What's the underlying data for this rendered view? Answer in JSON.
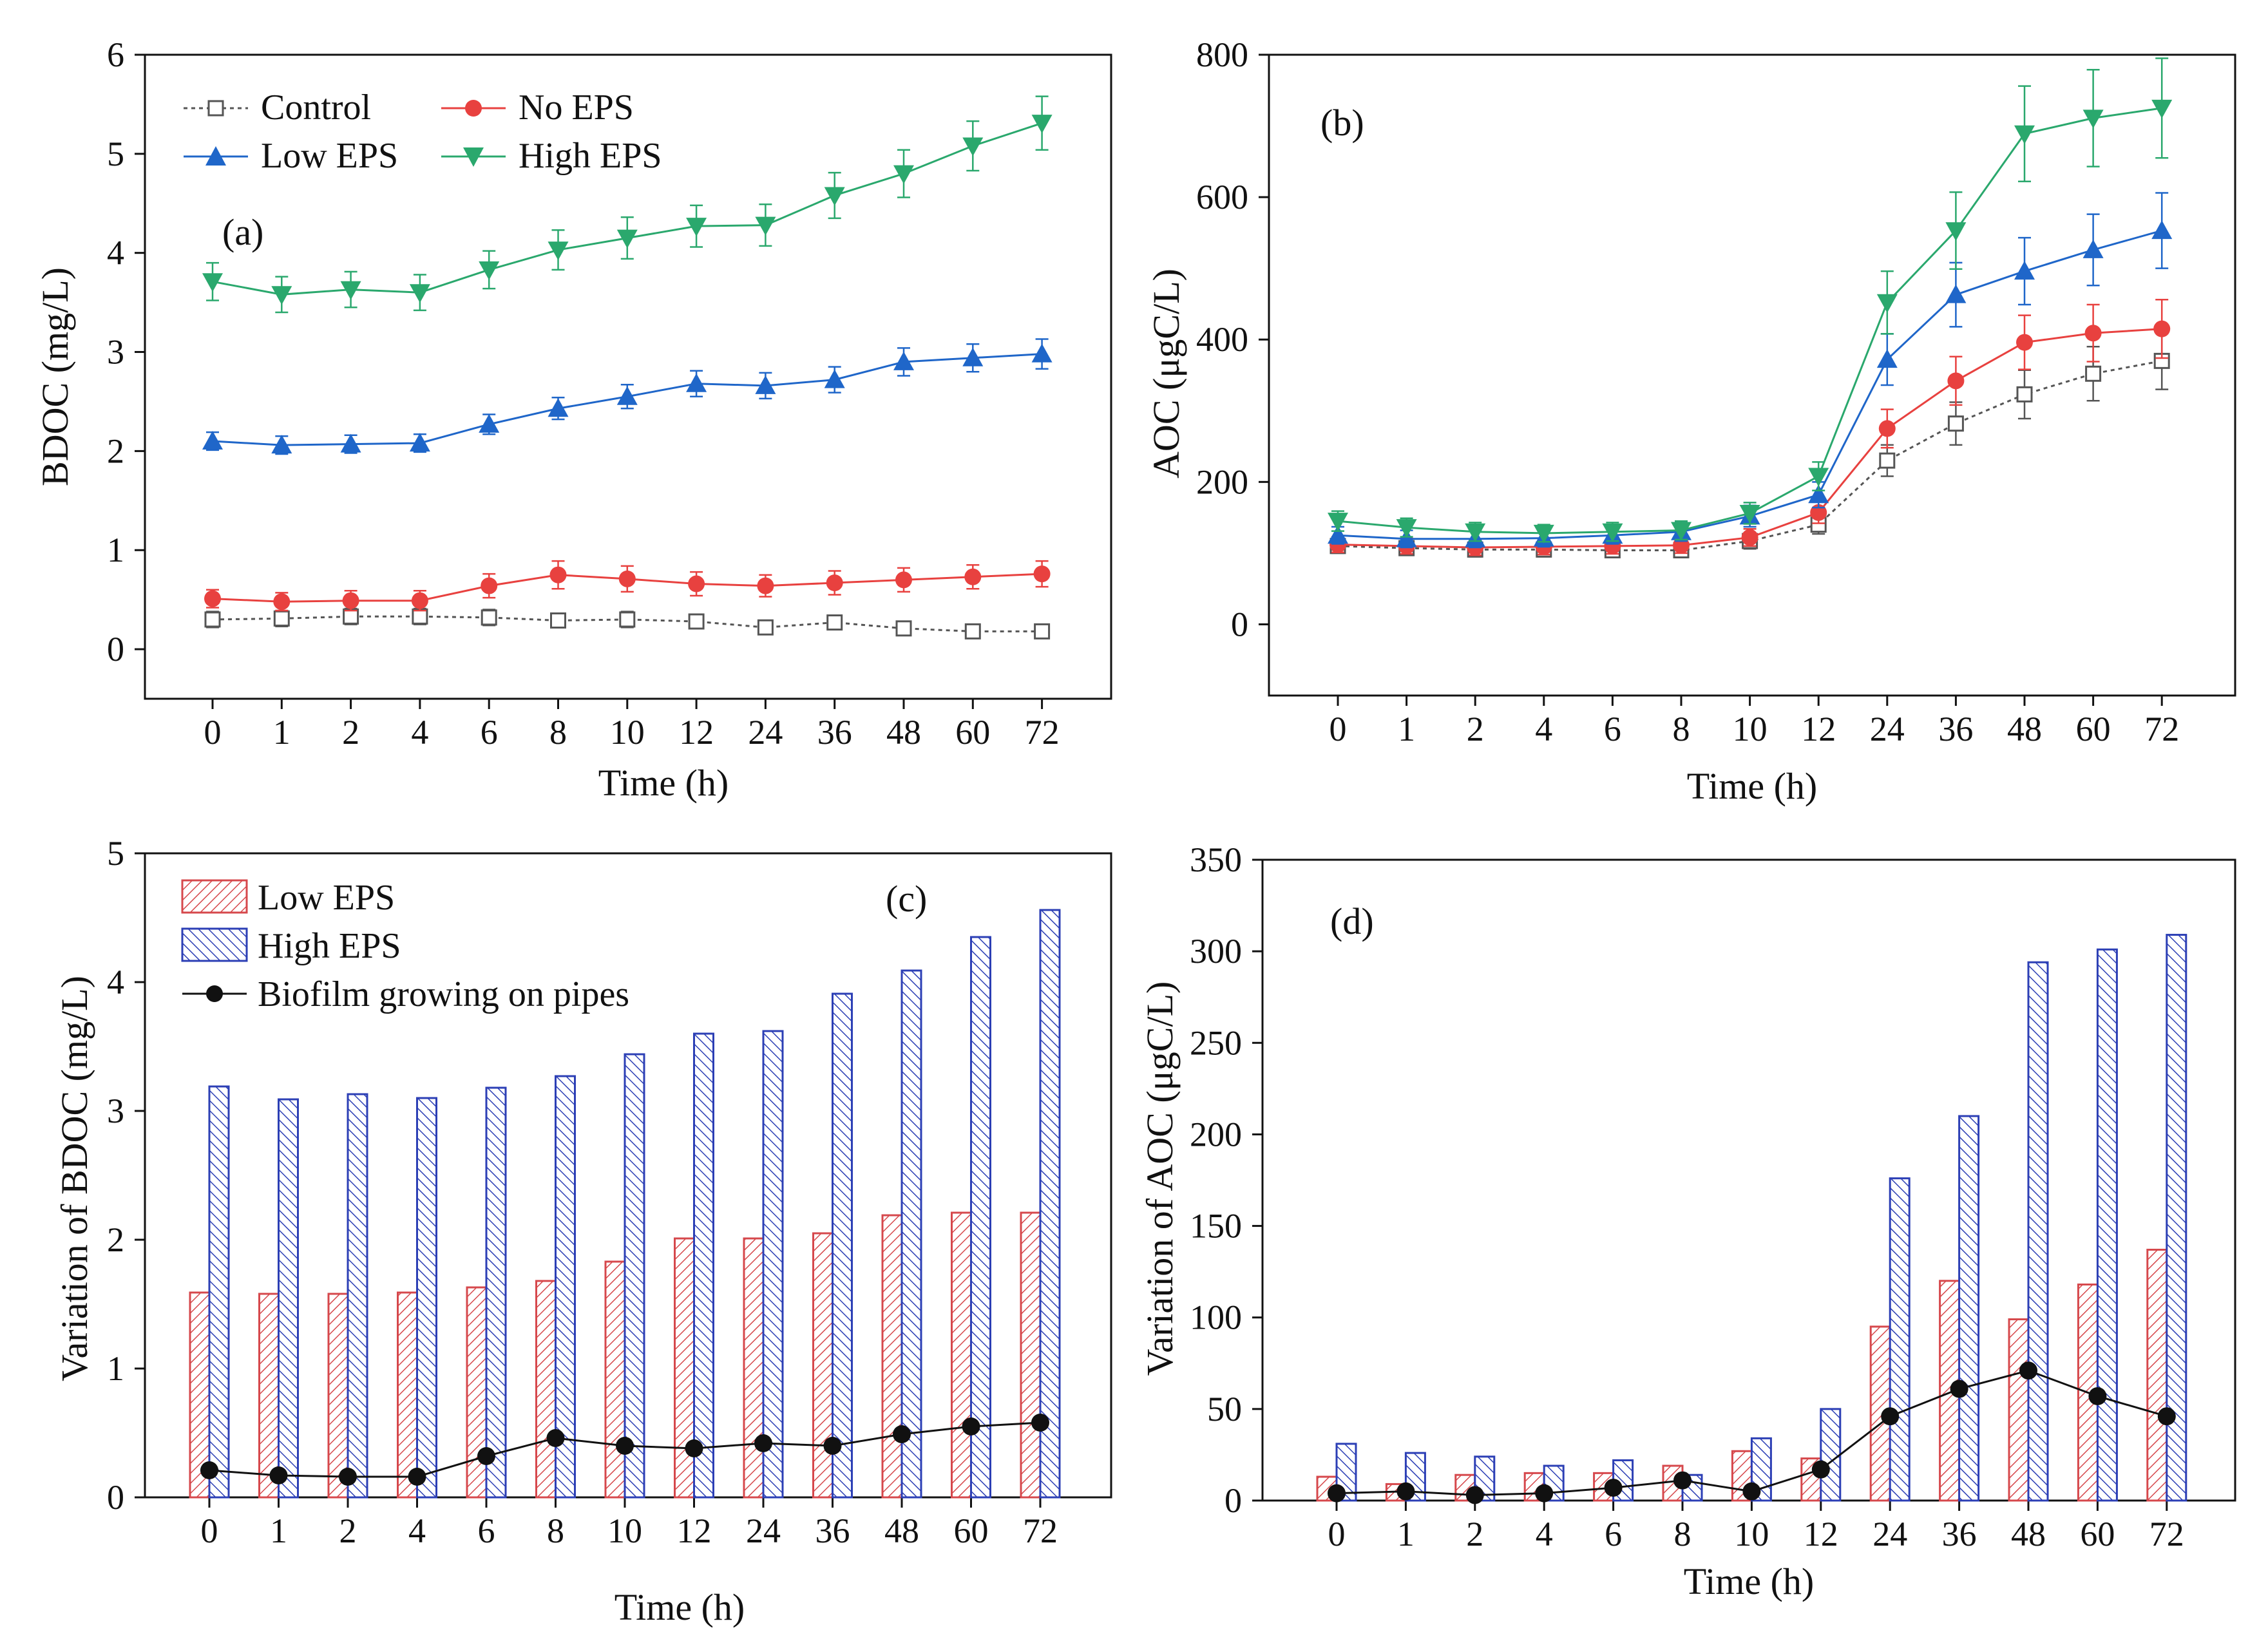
{
  "colors": {
    "control": "#555555",
    "no_eps": "#e8413f",
    "low_eps": "#1f66c9",
    "high_eps": "#2aa86d",
    "bar_low": "#d6484c",
    "bar_high": "#2c3fb5",
    "biofilm": "#111111"
  },
  "chart_data": [
    {
      "id": "a",
      "type": "line",
      "panel_label": "(a)",
      "xlabel": "Time (h)",
      "ylabel": "BDOC (mg/L)",
      "categories": [
        "0",
        "1",
        "2",
        "4",
        "6",
        "8",
        "10",
        "12",
        "24",
        "36",
        "48",
        "60",
        "72"
      ],
      "ylim": [
        -0.5,
        6
      ],
      "yticks": [
        0,
        1,
        2,
        3,
        4,
        5,
        6
      ],
      "legend": [
        "Control",
        "No EPS",
        "Low EPS",
        "High EPS"
      ],
      "series": [
        {
          "name": "Control",
          "marker": "square-open",
          "dashed": true,
          "values": [
            0.3,
            0.31,
            0.33,
            0.33,
            0.32,
            0.29,
            0.3,
            0.28,
            0.22,
            0.27,
            0.21,
            0.18,
            0.18
          ],
          "errors": [
            0.08,
            0.08,
            0.08,
            0.08,
            0.08,
            0.07,
            0.08,
            0.07,
            0.05,
            0.06,
            0.05,
            0.05,
            0.05
          ]
        },
        {
          "name": "No EPS",
          "marker": "circle",
          "values": [
            0.51,
            0.48,
            0.49,
            0.49,
            0.64,
            0.75,
            0.71,
            0.66,
            0.64,
            0.67,
            0.7,
            0.73,
            0.76
          ],
          "errors": [
            0.09,
            0.09,
            0.1,
            0.1,
            0.12,
            0.14,
            0.13,
            0.12,
            0.11,
            0.12,
            0.12,
            0.12,
            0.13
          ]
        },
        {
          "name": "Low EPS",
          "marker": "triangle-up",
          "values": [
            2.1,
            2.06,
            2.07,
            2.08,
            2.27,
            2.43,
            2.55,
            2.68,
            2.66,
            2.72,
            2.9,
            2.94,
            2.98
          ],
          "errors": [
            0.09,
            0.09,
            0.09,
            0.09,
            0.1,
            0.11,
            0.12,
            0.13,
            0.13,
            0.13,
            0.14,
            0.14,
            0.15
          ]
        },
        {
          "name": "High EPS",
          "marker": "triangle-down",
          "values": [
            3.71,
            3.58,
            3.63,
            3.6,
            3.83,
            4.03,
            4.15,
            4.27,
            4.28,
            4.58,
            4.8,
            5.08,
            5.31
          ],
          "errors": [
            0.19,
            0.18,
            0.18,
            0.18,
            0.19,
            0.2,
            0.21,
            0.21,
            0.21,
            0.23,
            0.24,
            0.25,
            0.27
          ]
        }
      ]
    },
    {
      "id": "b",
      "type": "line",
      "panel_label": "(b)",
      "xlabel": "Time (h)",
      "ylabel": "AOC (μgC/L)",
      "categories": [
        "0",
        "1",
        "2",
        "4",
        "6",
        "8",
        "10",
        "12",
        "24",
        "36",
        "48",
        "60",
        "72"
      ],
      "ylim": [
        -100,
        800
      ],
      "yticks": [
        0,
        200,
        400,
        600,
        800
      ],
      "series": [
        {
          "name": "Control",
          "marker": "square-open",
          "dashed": true,
          "values": [
            110,
            107,
            105,
            105,
            104,
            104,
            117,
            140,
            230,
            282,
            323,
            352,
            370
          ],
          "errors": [
            10,
            10,
            10,
            10,
            10,
            10,
            11,
            13,
            22,
            30,
            34,
            38,
            40
          ]
        },
        {
          "name": "No EPS",
          "marker": "circle",
          "values": [
            112,
            110,
            108,
            109,
            110,
            111,
            122,
            157,
            275,
            342,
            396,
            409,
            415
          ],
          "errors": [
            11,
            11,
            11,
            11,
            11,
            11,
            12,
            15,
            27,
            34,
            38,
            40,
            41
          ]
        },
        {
          "name": "Low EPS",
          "marker": "triangle-up",
          "values": [
            125,
            120,
            120,
            121,
            125,
            130,
            152,
            182,
            372,
            463,
            496,
            526,
            553
          ],
          "errors": [
            12,
            12,
            12,
            12,
            12,
            13,
            15,
            18,
            36,
            45,
            47,
            50,
            53
          ]
        },
        {
          "name": "High EPS",
          "marker": "triangle-down",
          "values": [
            145,
            136,
            130,
            128,
            130,
            132,
            156,
            208,
            452,
            553,
            689,
            711,
            725
          ],
          "errors": [
            14,
            13,
            13,
            12,
            13,
            13,
            15,
            20,
            44,
            54,
            67,
            68,
            70
          ]
        }
      ]
    },
    {
      "id": "c",
      "type": "bar",
      "panel_label": "(c)",
      "xlabel": "Time (h)",
      "ylabel": "Variation of BDOC (mg/L)",
      "categories": [
        "0",
        "1",
        "2",
        "4",
        "6",
        "8",
        "10",
        "12",
        "24",
        "36",
        "48",
        "60",
        "72"
      ],
      "ylim": [
        0,
        5
      ],
      "yticks": [
        0,
        1,
        2,
        3,
        4,
        5
      ],
      "legend": [
        "Low EPS",
        "High EPS",
        "Biofilm growing on pipes"
      ],
      "series": [
        {
          "name": "Low EPS",
          "kind": "bar",
          "values": [
            1.59,
            1.58,
            1.58,
            1.59,
            1.63,
            1.68,
            1.83,
            2.01,
            2.01,
            2.05,
            2.19,
            2.21,
            2.21
          ]
        },
        {
          "name": "High EPS",
          "kind": "bar",
          "values": [
            3.19,
            3.09,
            3.13,
            3.1,
            3.18,
            3.27,
            3.44,
            3.6,
            3.62,
            3.91,
            4.09,
            4.35,
            4.56
          ]
        },
        {
          "name": "Biofilm growing on pipes",
          "kind": "line",
          "values": [
            0.21,
            0.17,
            0.16,
            0.16,
            0.32,
            0.46,
            0.4,
            0.38,
            0.42,
            0.4,
            0.49,
            0.55,
            0.58
          ]
        }
      ]
    },
    {
      "id": "d",
      "type": "bar",
      "panel_label": "(d)",
      "xlabel": "Time (h)",
      "ylabel": "Variation of AOC (μgC/L)",
      "categories": [
        "0",
        "1",
        "2",
        "4",
        "6",
        "8",
        "10",
        "12",
        "24",
        "36",
        "48",
        "60",
        "72"
      ],
      "ylim": [
        0,
        350
      ],
      "yticks": [
        0,
        50,
        100,
        150,
        200,
        250,
        300,
        350
      ],
      "series": [
        {
          "name": "Low EPS",
          "kind": "bar",
          "values": [
            13,
            9,
            14,
            15,
            15,
            19,
            27,
            23,
            95,
            120,
            99,
            118,
            137
          ]
        },
        {
          "name": "High EPS",
          "kind": "bar",
          "values": [
            31,
            26,
            24,
            19,
            22,
            14,
            34,
            50,
            176,
            210,
            294,
            301,
            309
          ]
        },
        {
          "name": "Biofilm growing on pipes",
          "kind": "line",
          "values": [
            4,
            5,
            3,
            4,
            7,
            11,
            5,
            17,
            46,
            61,
            71,
            57,
            46
          ]
        }
      ]
    }
  ]
}
